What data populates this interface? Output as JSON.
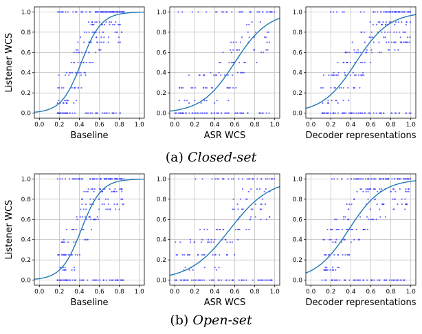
{
  "chart_data": [
    {
      "type": "scatter",
      "panel": "a",
      "xlabel": "Baseline",
      "ylabel": "Listener WCS",
      "xlim": [
        -0.05,
        1.05
      ],
      "ylim": [
        -0.05,
        1.05
      ],
      "xticks": [
        "0.0",
        "0.2",
        "0.4",
        "0.6",
        "0.8",
        "1.0"
      ],
      "yticks": [
        "0.0",
        "0.2",
        "0.4",
        "0.6",
        "0.8",
        "1.0"
      ],
      "grid": true,
      "fit_curve": {
        "type": "logistic",
        "midpoint": 0.42,
        "steepness": 10
      },
      "points": {
        "x_range": [
          0.18,
          0.85
        ],
        "density": "high"
      }
    },
    {
      "type": "scatter",
      "panel": "a",
      "xlabel": "ASR WCS",
      "ylabel": "",
      "xlim": [
        -0.05,
        1.05
      ],
      "ylim": [
        -0.05,
        1.05
      ],
      "xticks": [
        "0.0",
        "0.2",
        "0.4",
        "0.6",
        "0.8",
        "1.0"
      ],
      "yticks": [
        "0.0",
        "0.2",
        "0.4",
        "0.6",
        "0.8",
        "1.0"
      ],
      "grid": true,
      "fit_curve": {
        "type": "logistic",
        "midpoint": 0.6,
        "steepness": 6
      },
      "points": {
        "x_range": [
          0.0,
          1.0
        ],
        "density": "medium"
      }
    },
    {
      "type": "scatter",
      "panel": "a",
      "xlabel": "Decoder representations",
      "ylabel": "",
      "xlim": [
        -0.05,
        1.05
      ],
      "ylim": [
        -0.05,
        1.05
      ],
      "xticks": [
        "0.0",
        "0.2",
        "0.4",
        "0.6",
        "0.8",
        "1.0"
      ],
      "yticks": [
        "0.0",
        "0.2",
        "0.4",
        "0.6",
        "0.8",
        "1.0"
      ],
      "grid": true,
      "fit_curve": {
        "type": "logistic",
        "midpoint": 0.45,
        "steepness": 6
      },
      "points": {
        "x_range": [
          0.1,
          1.0
        ],
        "density": "high"
      }
    },
    {
      "type": "scatter",
      "panel": "b",
      "xlabel": "Baseline",
      "ylabel": "Listener WCS",
      "xlim": [
        -0.05,
        1.05
      ],
      "ylim": [
        -0.05,
        1.05
      ],
      "xticks": [
        "0.0",
        "0.2",
        "0.4",
        "0.6",
        "0.8",
        "1.0"
      ],
      "yticks": [
        "0.0",
        "0.2",
        "0.4",
        "0.6",
        "0.8",
        "1.0"
      ],
      "grid": true,
      "fit_curve": {
        "type": "logistic",
        "midpoint": 0.42,
        "steepness": 10
      },
      "points": {
        "x_range": [
          0.18,
          0.85
        ],
        "density": "high"
      }
    },
    {
      "type": "scatter",
      "panel": "b",
      "xlabel": "ASR WCS",
      "ylabel": "",
      "xlim": [
        -0.05,
        1.05
      ],
      "ylim": [
        -0.05,
        1.05
      ],
      "xticks": [
        "0.0",
        "0.2",
        "0.4",
        "0.6",
        "0.8",
        "1.0"
      ],
      "yticks": [
        "0.0",
        "0.2",
        "0.4",
        "0.6",
        "0.8",
        "1.0"
      ],
      "grid": true,
      "fit_curve": {
        "type": "logistic",
        "midpoint": 0.55,
        "steepness": 5
      },
      "points": {
        "x_range": [
          0.0,
          1.0
        ],
        "density": "medium"
      }
    },
    {
      "type": "scatter",
      "panel": "b",
      "xlabel": "Decoder representations",
      "ylabel": "",
      "xlim": [
        -0.05,
        1.05
      ],
      "ylim": [
        -0.05,
        1.05
      ],
      "xticks": [
        "0.0",
        "0.2",
        "0.4",
        "0.6",
        "0.8",
        "1.0"
      ],
      "yticks": [
        "0.0",
        "0.2",
        "0.4",
        "0.6",
        "0.8",
        "1.0"
      ],
      "grid": true,
      "fit_curve": {
        "type": "logistic",
        "midpoint": 0.38,
        "steepness": 6
      },
      "points": {
        "x_range": [
          0.1,
          1.0
        ],
        "density": "high"
      }
    }
  ],
  "captions": [
    {
      "label": "(a)",
      "name": "Closed-set"
    },
    {
      "label": "(b)",
      "name": "Open-set"
    }
  ],
  "colors": {
    "points": "#3a3aff",
    "curve": "#1f77b4",
    "grid": "#b0b0b0"
  }
}
